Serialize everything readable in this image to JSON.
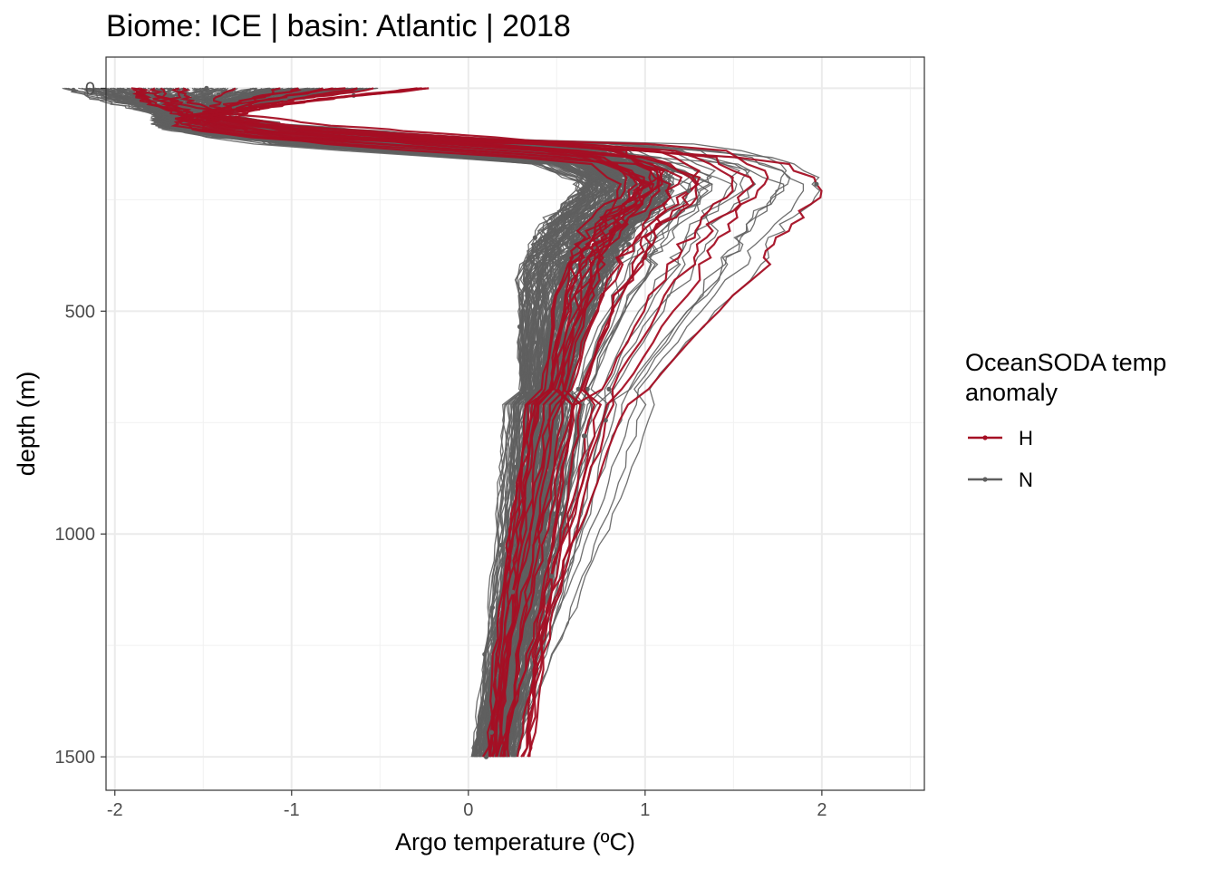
{
  "chart_data": {
    "type": "line",
    "title": "Biome: ICE | basin: Atlantic  |  2018",
    "xlabel": "Argo temperature (ºC)",
    "ylabel": "depth (m)",
    "xlim": [
      -2.05,
      2.58
    ],
    "ylim": [
      1575,
      -70
    ],
    "y_reversed": true,
    "grid": true,
    "x_ticks": [
      -2,
      -1,
      0,
      1,
      2
    ],
    "x_tick_labels": [
      "-2",
      "-1",
      "0",
      "1",
      "2"
    ],
    "y_ticks": [
      0,
      500,
      1000,
      1500
    ],
    "y_tick_labels": [
      "0",
      "500",
      "1000",
      "1500"
    ],
    "legend": {
      "title_lines": [
        "OceanSODA temp",
        "anomaly"
      ],
      "placement": "right",
      "entries": [
        {
          "name": "H",
          "color": "#a50f24"
        },
        {
          "name": "N",
          "color": "#5f5f5f"
        }
      ]
    },
    "series": [
      {
        "name": "N",
        "color": "#5f5f5f",
        "profile_count": 210,
        "depth": [
          0,
          30,
          70,
          100,
          150,
          200,
          250,
          300,
          400,
          500,
          600,
          750,
          1000,
          1250,
          1500
        ],
        "median_temp": [
          -1.4,
          -1.55,
          -1.6,
          -1.2,
          0.6,
          0.9,
          0.85,
          0.7,
          0.55,
          0.5,
          0.45,
          0.42,
          0.35,
          0.25,
          0.15
        ]
      },
      {
        "name": "H",
        "color": "#a50f24",
        "profile_count": 22,
        "depth": [
          0,
          30,
          70,
          100,
          150,
          200,
          250,
          300,
          400,
          500,
          600,
          750,
          1000,
          1250,
          1500
        ],
        "median_temp": [
          -1.0,
          -1.3,
          -1.5,
          -1.0,
          0.8,
          1.05,
          1.0,
          0.85,
          0.7,
          0.62,
          0.55,
          0.48,
          0.38,
          0.28,
          0.22
        ]
      }
    ]
  }
}
